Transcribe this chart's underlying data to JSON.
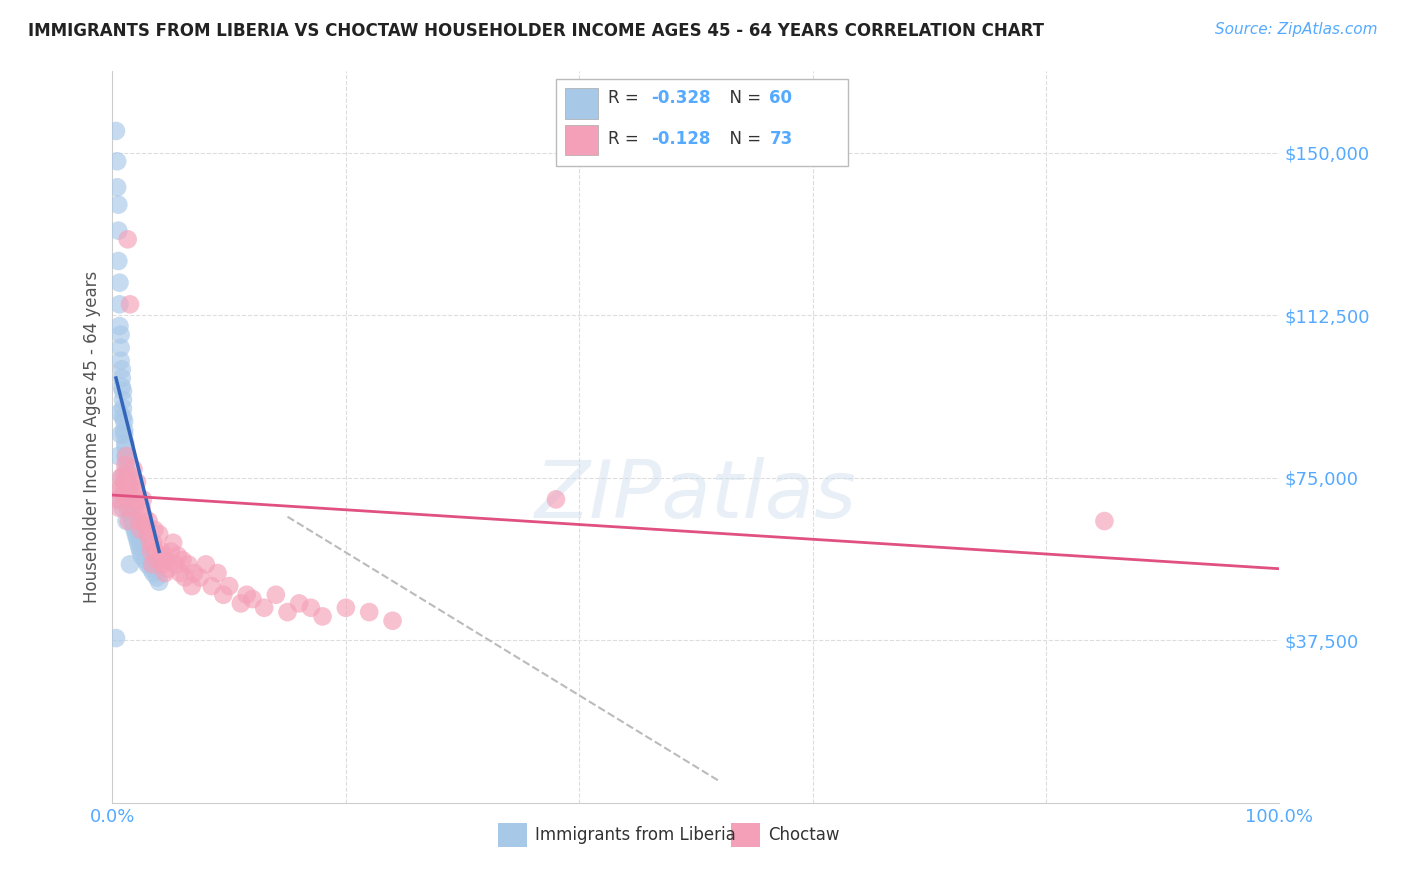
{
  "title": "IMMIGRANTS FROM LIBERIA VS CHOCTAW HOUSEHOLDER INCOME AGES 45 - 64 YEARS CORRELATION CHART",
  "source": "Source: ZipAtlas.com",
  "ylabel": "Householder Income Ages 45 - 64 years",
  "ytick_labels": [
    "$37,500",
    "$75,000",
    "$112,500",
    "$150,000"
  ],
  "ytick_values": [
    37500,
    75000,
    112500,
    150000
  ],
  "ymin": 0,
  "ymax": 168750,
  "xmin": 0.0,
  "xmax": 1.0,
  "legend_blue_R": "-0.328",
  "legend_blue_N": "60",
  "legend_pink_R": "-0.128",
  "legend_pink_N": "73",
  "legend_blue_label": "Immigrants from Liberia",
  "legend_pink_label": "Choctaw",
  "blue_color": "#a8c8e8",
  "pink_color": "#f4a0b8",
  "blue_line_color": "#3366bb",
  "pink_line_color": "#e05080",
  "dashed_line_color": "#bbbbbb",
  "title_color": "#222222",
  "axis_label_color": "#555555",
  "tick_color": "#55aaff",
  "background_color": "#ffffff",
  "grid_color": "#dddddd",
  "blue_scatter_x": [
    0.003,
    0.004,
    0.004,
    0.005,
    0.005,
    0.005,
    0.006,
    0.006,
    0.006,
    0.007,
    0.007,
    0.007,
    0.008,
    0.008,
    0.008,
    0.009,
    0.009,
    0.009,
    0.009,
    0.01,
    0.01,
    0.01,
    0.011,
    0.011,
    0.011,
    0.012,
    0.012,
    0.013,
    0.013,
    0.014,
    0.014,
    0.015,
    0.015,
    0.016,
    0.016,
    0.017,
    0.018,
    0.019,
    0.02,
    0.021,
    0.022,
    0.023,
    0.024,
    0.025,
    0.028,
    0.03,
    0.033,
    0.035,
    0.038,
    0.04,
    0.003,
    0.004,
    0.005,
    0.006,
    0.007,
    0.008,
    0.009,
    0.01,
    0.012,
    0.015
  ],
  "blue_scatter_y": [
    155000,
    148000,
    142000,
    138000,
    132000,
    125000,
    120000,
    115000,
    110000,
    108000,
    105000,
    102000,
    100000,
    98000,
    96000,
    95000,
    93000,
    91000,
    89000,
    88000,
    86000,
    85000,
    83000,
    82000,
    80000,
    79000,
    77000,
    76000,
    74000,
    73000,
    71000,
    70000,
    68000,
    67000,
    66000,
    65000,
    64000,
    63000,
    62000,
    61000,
    60000,
    59000,
    58000,
    57000,
    56000,
    55000,
    54000,
    53000,
    52000,
    51000,
    38000,
    70000,
    80000,
    90000,
    85000,
    75000,
    68000,
    72000,
    65000,
    55000
  ],
  "pink_scatter_x": [
    0.004,
    0.005,
    0.006,
    0.007,
    0.008,
    0.009,
    0.01,
    0.01,
    0.011,
    0.012,
    0.013,
    0.014,
    0.015,
    0.016,
    0.017,
    0.018,
    0.019,
    0.02,
    0.021,
    0.022,
    0.023,
    0.024,
    0.025,
    0.026,
    0.027,
    0.028,
    0.03,
    0.031,
    0.032,
    0.033,
    0.034,
    0.035,
    0.036,
    0.037,
    0.038,
    0.04,
    0.042,
    0.043,
    0.044,
    0.045,
    0.046,
    0.048,
    0.05,
    0.052,
    0.054,
    0.056,
    0.058,
    0.06,
    0.062,
    0.065,
    0.068,
    0.07,
    0.075,
    0.08,
    0.085,
    0.09,
    0.095,
    0.1,
    0.11,
    0.115,
    0.12,
    0.13,
    0.14,
    0.15,
    0.16,
    0.17,
    0.18,
    0.2,
    0.22,
    0.24,
    0.85,
    0.013,
    0.015,
    0.38
  ],
  "pink_scatter_y": [
    70000,
    72000,
    68000,
    75000,
    73000,
    71000,
    74000,
    76000,
    78000,
    80000,
    68000,
    65000,
    70000,
    73000,
    75000,
    77000,
    68000,
    72000,
    74000,
    70000,
    65000,
    63000,
    68000,
    70000,
    66000,
    64000,
    62000,
    65000,
    60000,
    58000,
    55000,
    60000,
    63000,
    58000,
    56000,
    62000,
    58000,
    55000,
    57000,
    53000,
    56000,
    54000,
    58000,
    60000,
    55000,
    57000,
    53000,
    56000,
    52000,
    55000,
    50000,
    53000,
    52000,
    55000,
    50000,
    53000,
    48000,
    50000,
    46000,
    48000,
    47000,
    45000,
    48000,
    44000,
    46000,
    45000,
    43000,
    45000,
    44000,
    42000,
    65000,
    130000,
    115000,
    70000
  ],
  "blue_line_x": [
    0.003,
    0.04
  ],
  "blue_line_y": [
    98000,
    58000
  ],
  "pink_line_x": [
    0.0,
    1.0
  ],
  "pink_line_y": [
    71000,
    54000
  ],
  "dash_line_x": [
    0.15,
    0.52
  ],
  "dash_line_y": [
    66000,
    5000
  ]
}
